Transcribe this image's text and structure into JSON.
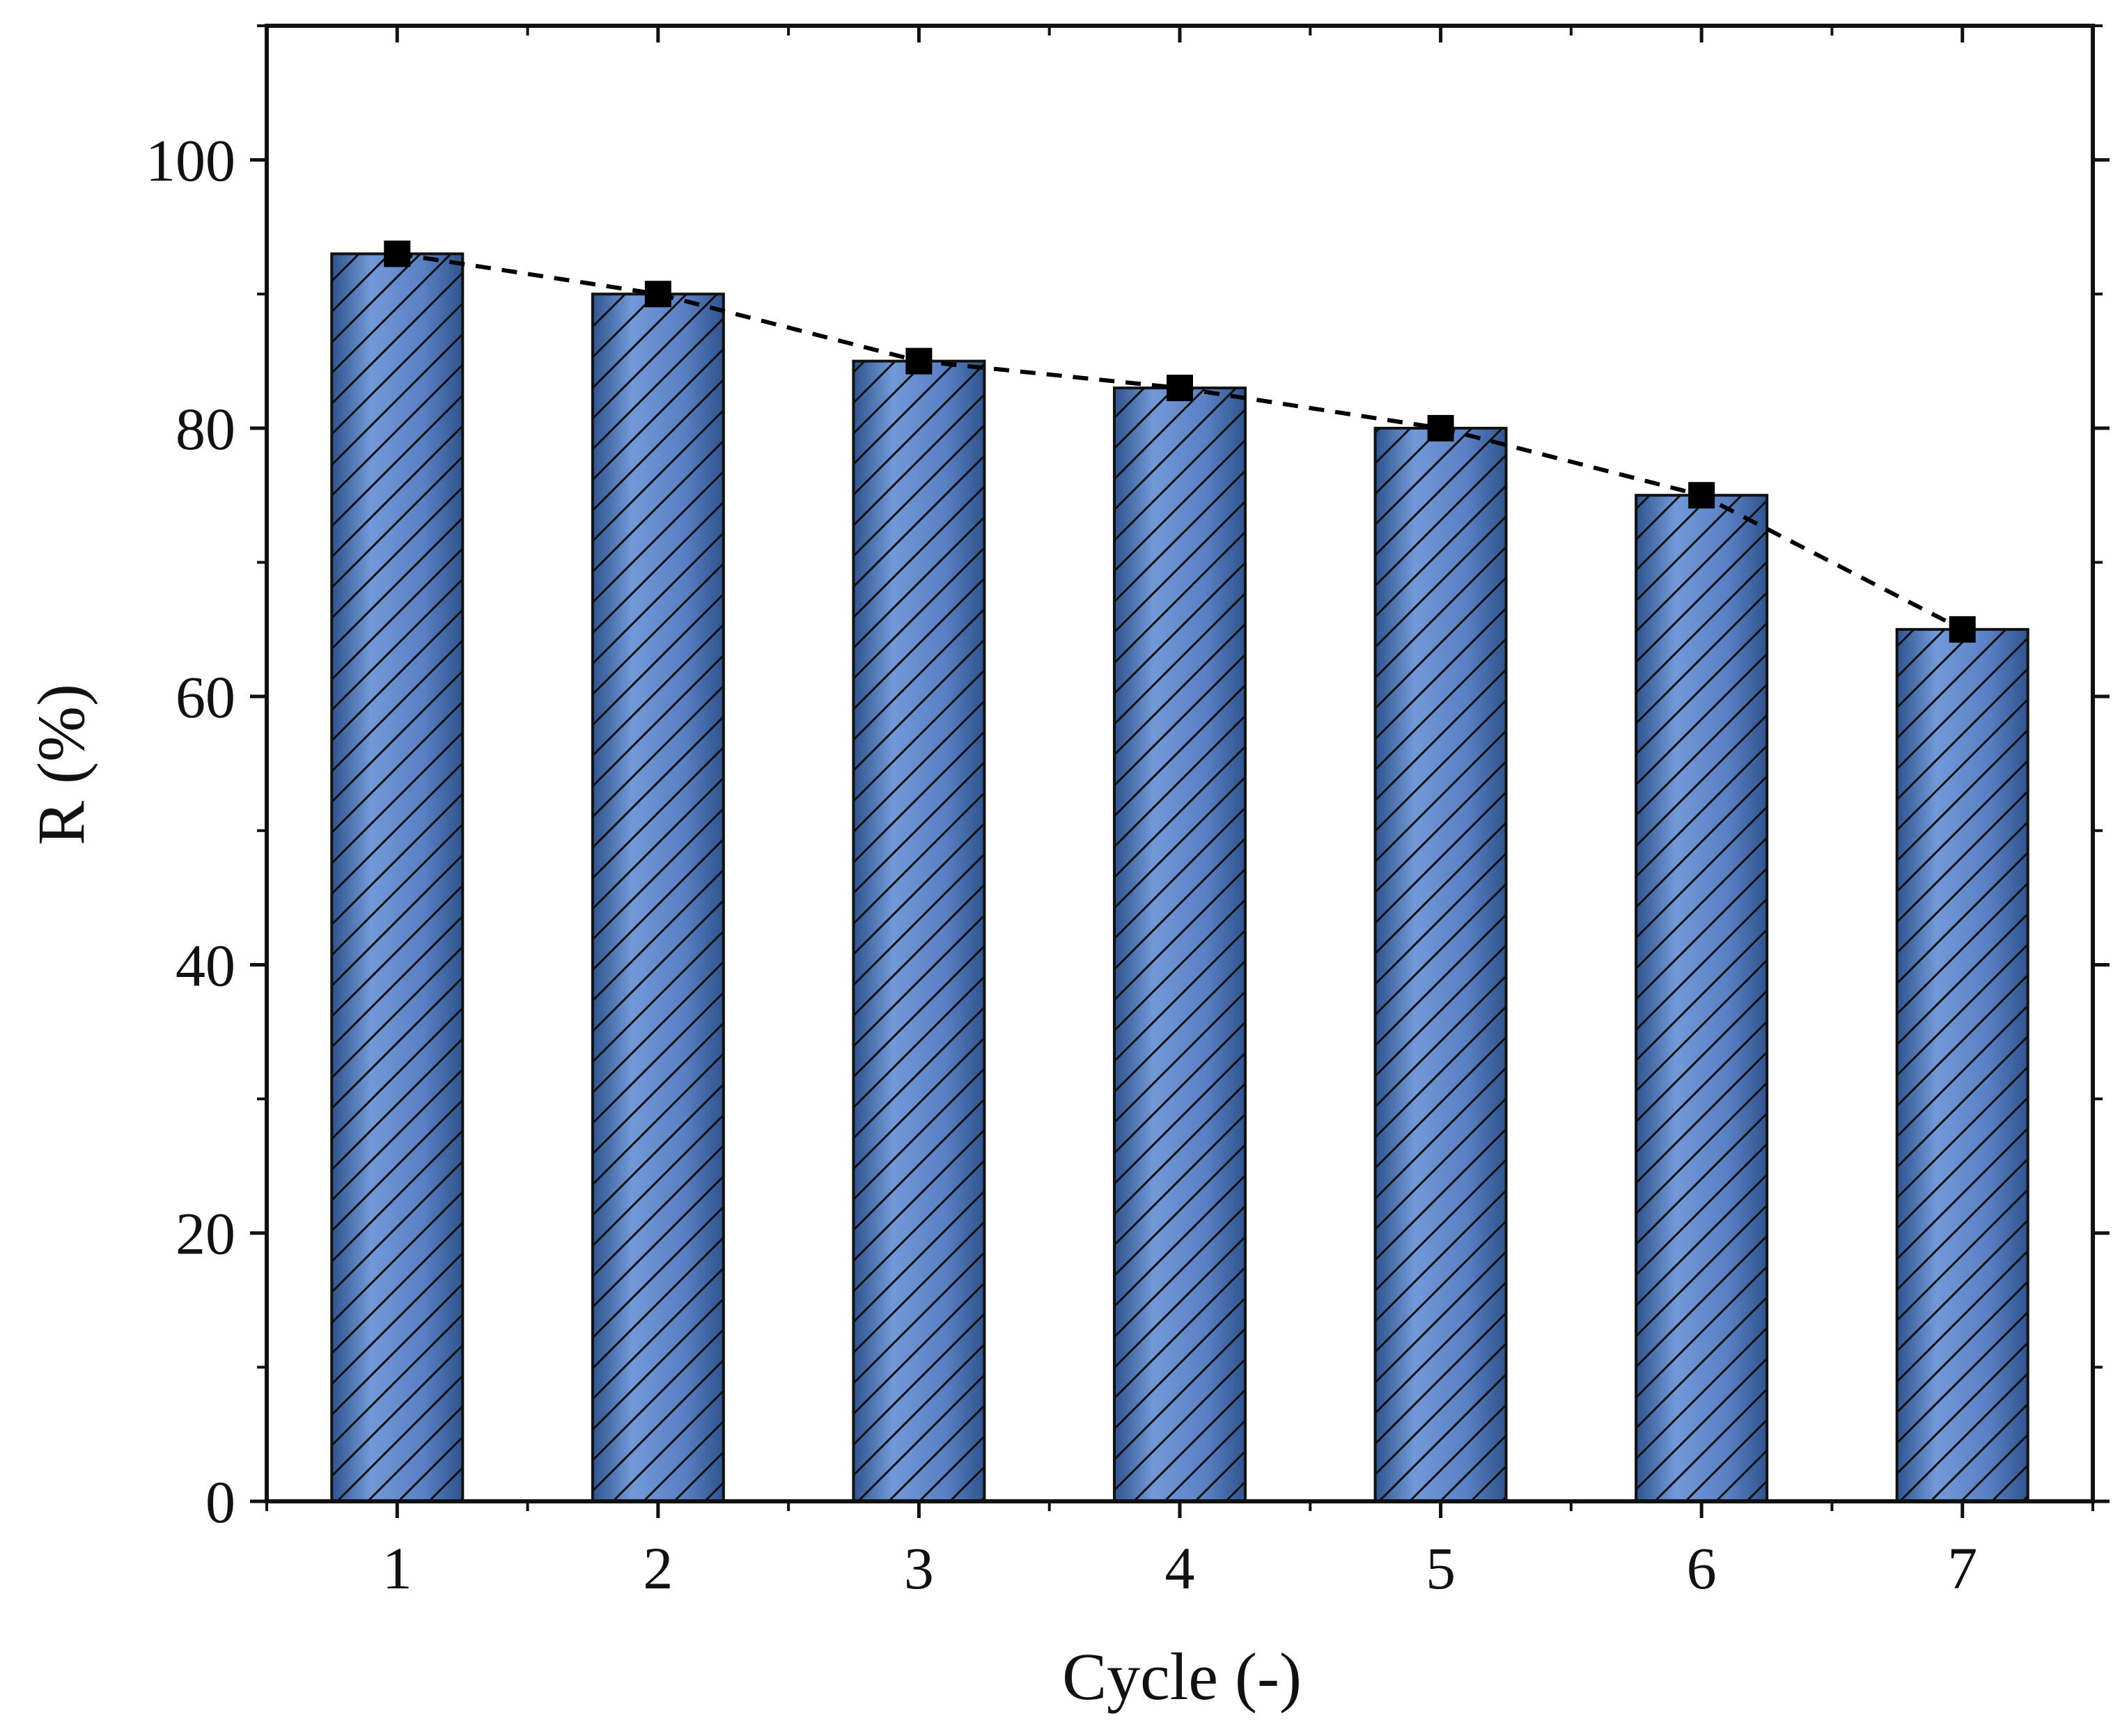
{
  "chart_data": {
    "type": "bar",
    "title": "",
    "xlabel": "Cycle (-)",
    "ylabel": "R (%)",
    "categories": [
      "1",
      "2",
      "3",
      "4",
      "5",
      "6",
      "7"
    ],
    "x_ticks": [
      "1",
      "2",
      "3",
      "4",
      "5",
      "6",
      "7"
    ],
    "y_ticks": [
      "0",
      "20",
      "40",
      "60",
      "80",
      "100"
    ],
    "ylim": [
      0,
      110
    ],
    "xlim": [
      0.5,
      7.5
    ],
    "grid": false,
    "legend": "none",
    "series": [
      {
        "name": "R bars",
        "kind": "bar",
        "pattern": "diagonal-hatch",
        "values": [
          93,
          90,
          85,
          83,
          80,
          75,
          65
        ]
      },
      {
        "name": "R trend",
        "kind": "line",
        "line_style": "dashed",
        "marker": "square",
        "values": [
          93,
          90,
          85,
          83,
          80,
          75,
          65
        ]
      }
    ],
    "colors": {
      "bar_light": "#7299d8",
      "bar_mid": "#5a80c4",
      "bar_dark": "#2f548e",
      "hatch": "#111111",
      "axis": "#111111",
      "marker": "#000000"
    }
  }
}
